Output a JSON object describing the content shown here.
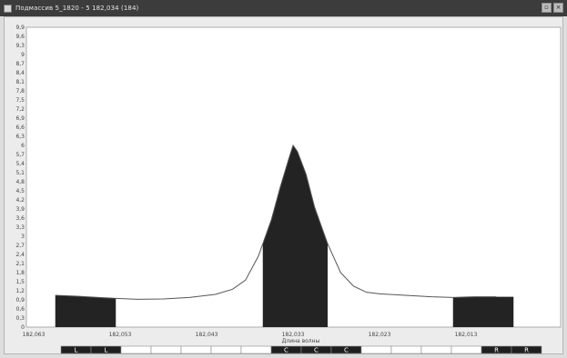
{
  "window": {
    "title": "Подмассив 5_1820 - 5 182,034 (184)",
    "buttons": [
      {
        "name": "restore-button",
        "glyph": "▫"
      },
      {
        "name": "close-button",
        "glyph": "×"
      }
    ]
  },
  "chart_data": {
    "type": "area",
    "xlabel": "Длина волны",
    "ylabel": "",
    "xlim": [
      182.063,
      182.003
    ],
    "x_reversed": true,
    "ylim": [
      0,
      9.9
    ],
    "y_ticks": [
      "0",
      "0,3",
      "0,6",
      "0,9",
      "1,2",
      "1,5",
      "1,8",
      "2,1",
      "2,4",
      "2,7",
      "3",
      "3,3",
      "3,6",
      "3,9",
      "4,2",
      "4,5",
      "4,8",
      "5,1",
      "5,4",
      "5,7",
      "6",
      "6,3",
      "6,6",
      "6,9",
      "7,2",
      "7,5",
      "7,8",
      "8,1",
      "8,4",
      "8,7",
      "9",
      "9,3",
      "9,6",
      "9,9"
    ],
    "x_ticks": [
      {
        "value": 182.063,
        "label": "182,063"
      },
      {
        "value": 182.053,
        "label": "182,053"
      },
      {
        "value": 182.043,
        "label": "182,043"
      },
      {
        "value": 182.033,
        "label": "182,033"
      },
      {
        "value": 182.023,
        "label": "182,023"
      },
      {
        "value": 182.013,
        "label": "182,013"
      }
    ],
    "series": [
      {
        "x": [
          182.0605,
          182.058,
          182.0555,
          182.0535,
          182.051,
          182.048,
          182.045,
          182.042,
          182.04,
          182.0385,
          182.037,
          182.0355,
          182.0345,
          182.0335,
          182.033,
          182.0325,
          182.0315,
          182.0305,
          182.029,
          182.0275,
          182.026,
          182.0245,
          182.023,
          182.02,
          182.017,
          182.0145,
          182.012,
          182.0095
        ],
        "y": [
          1.05,
          1.02,
          0.98,
          0.95,
          0.92,
          0.93,
          0.98,
          1.08,
          1.25,
          1.55,
          2.35,
          3.55,
          4.6,
          5.55,
          6.0,
          5.8,
          5.05,
          3.95,
          2.75,
          1.8,
          1.35,
          1.15,
          1.1,
          1.05,
          1.0,
          0.98,
          1.0,
          1.0
        ]
      }
    ],
    "shaded_regions": [
      {
        "label": "L",
        "x_start": 182.0605,
        "x_end": 182.0535
      },
      {
        "label": "C",
        "x_start": 182.0365,
        "x_end": 182.029
      },
      {
        "label": "R",
        "x_start": 182.0145,
        "x_end": 182.0075
      }
    ]
  },
  "band": {
    "cells": [
      "L",
      "L",
      "",
      "",
      "",
      "",
      "",
      "C",
      "C",
      "C",
      "",
      "",
      "",
      "",
      "R",
      "R"
    ]
  }
}
